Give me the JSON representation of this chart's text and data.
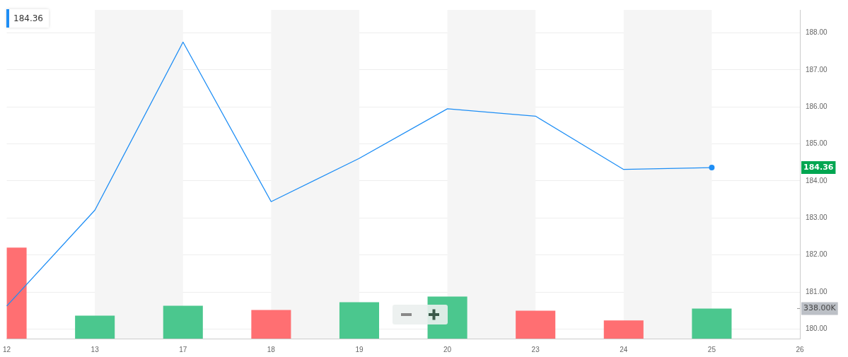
{
  "chart_data": {
    "type": "line",
    "categories": [
      "12",
      "13",
      "17",
      "18",
      "19",
      "20",
      "23",
      "24",
      "25",
      "26"
    ],
    "series": [
      {
        "color": "#1e8ef5",
        "values": [
          180.62,
          183.21,
          187.75,
          183.44,
          184.61,
          185.95,
          185.75,
          184.31,
          184.36,
          null
        ]
      },
      {
        "type": "bar",
        "axis": "y2",
        "colors": [
          "#ff6f72",
          "#4bc78e",
          "#4bc78e",
          "#ff6f72",
          "#4bc78e",
          "#4bc78e",
          "#ff6f72",
          "#ff6f72",
          "#4bc78e",
          null
        ],
        "values": [
          1022000,
          259000,
          369000,
          322000,
          409000,
          472000,
          314000,
          204000,
          338000,
          null
        ]
      }
    ],
    "ylim": [
      179.74,
      188.62
    ],
    "yticks": [
      {
        "value": 180,
        "label": "180.00"
      },
      {
        "value": 181,
        "label": "181.00"
      },
      {
        "value": 182,
        "label": "182.00"
      },
      {
        "value": 183,
        "label": "183.00"
      },
      {
        "value": 184,
        "label": "184.00"
      },
      {
        "value": 185,
        "label": "185.00"
      },
      {
        "value": 186,
        "label": "186.00"
      },
      {
        "value": 187,
        "label": "187.00"
      },
      {
        "value": 188,
        "label": "188.00"
      }
    ],
    "y2lim": [
      0,
      3694000
    ],
    "y2ticks": [
      {
        "value": 338000,
        "label": "338.00K"
      }
    ],
    "bands": [
      {
        "axis": "x",
        "from": "13",
        "to": "17",
        "color": "#f5f5f5"
      },
      {
        "axis": "x",
        "from": "18",
        "to": "19",
        "color": "#f5f5f5"
      },
      {
        "axis": "x",
        "from": "20",
        "to": "23",
        "color": "#f5f5f5"
      },
      {
        "axis": "x",
        "from": "24",
        "to": "25",
        "color": "#f5f5f5"
      }
    ],
    "annotations": [
      "184.36",
      "184.36"
    ],
    "grid": "y",
    "legend": false,
    "line_style": "solid"
  }
}
